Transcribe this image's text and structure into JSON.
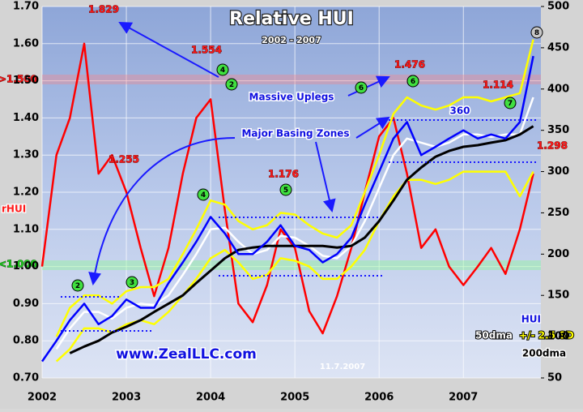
{
  "chart_data": {
    "type": "line",
    "title": "Relative HUI",
    "subtitle": "2002 - 2007",
    "x": [
      2002,
      2002.17,
      2002.33,
      2002.5,
      2002.67,
      2002.83,
      2003,
      2003.17,
      2003.33,
      2003.5,
      2003.67,
      2003.83,
      2004,
      2004.17,
      2004.33,
      2004.5,
      2004.67,
      2004.83,
      2005,
      2005.17,
      2005.33,
      2005.5,
      2005.67,
      2005.83,
      2006,
      2006.17,
      2006.33,
      2006.5,
      2006.67,
      2006.83,
      2007,
      2007.17,
      2007.33,
      2007.5,
      2007.67,
      2007.83
    ],
    "xlim": [
      2002,
      2007.92
    ],
    "xticks": [
      2002,
      2003,
      2004,
      2005,
      2006,
      2007
    ],
    "ylim": [
      0.7,
      1.7
    ],
    "yticks": [
      {
        "value": 0.7,
        "label": "0.70"
      },
      {
        "value": 0.8,
        "label": "0.80"
      },
      {
        "value": 0.9,
        "label": "0.90"
      },
      {
        "value": 1.0,
        "label": "1.00"
      },
      {
        "value": 1.1,
        "label": "1.10"
      },
      {
        "value": 1.2,
        "label": "1.20"
      },
      {
        "value": 1.3,
        "label": "1.30"
      },
      {
        "value": 1.4,
        "label": "1.40"
      },
      {
        "value": 1.5,
        "label": "1.50"
      },
      {
        "value": 1.6,
        "label": "1.60"
      },
      {
        "value": 1.7,
        "label": "1.70"
      }
    ],
    "y2lim": [
      50,
      500
    ],
    "y2ticks": [
      50,
      100,
      150,
      200,
      250,
      300,
      350,
      400,
      450,
      500
    ],
    "grid": true,
    "series": [
      {
        "name": "rHUI",
        "color": "#ff0000",
        "values": [
          1.0,
          1.3,
          1.4,
          1.6,
          1.25,
          1.3,
          1.2,
          1.05,
          0.92,
          1.05,
          1.25,
          1.4,
          1.45,
          1.15,
          0.9,
          0.85,
          0.95,
          1.1,
          1.05,
          0.88,
          0.82,
          0.92,
          1.05,
          1.2,
          1.35,
          1.4,
          1.25,
          1.05,
          1.1,
          1.0,
          0.95,
          1.0,
          1.05,
          0.98,
          1.1,
          1.25
        ]
      },
      {
        "name": "+/- 2.5 SD",
        "color": "#ffff00",
        "axis": "y2",
        "values": [
          null,
          100,
          135,
          150,
          150,
          140,
          155,
          160,
          160,
          170,
          200,
          230,
          265,
          260,
          240,
          230,
          235,
          250,
          248,
          235,
          225,
          220,
          235,
          275,
          320,
          370,
          390,
          380,
          375,
          380,
          390,
          390,
          385,
          390,
          395,
          460
        ],
        "lower": [
          null,
          70,
          85,
          110,
          110,
          105,
          115,
          120,
          115,
          130,
          150,
          170,
          195,
          205,
          190,
          170,
          175,
          195,
          192,
          185,
          170,
          170,
          185,
          205,
          240,
          270,
          290,
          290,
          285,
          290,
          300,
          300,
          300,
          300,
          270,
          300
        ]
      },
      {
        "name": "50dma",
        "color": "#ffffff",
        "axis": "y2",
        "values": [
          null,
          85,
          110,
          130,
          130,
          122,
          135,
          140,
          138,
          150,
          175,
          200,
          230,
          232,
          215,
          200,
          205,
          222,
          220,
          210,
          198,
          195,
          210,
          240,
          280,
          320,
          340,
          335,
          330,
          335,
          345,
          345,
          342,
          345,
          345,
          390
        ]
      },
      {
        "name": "200dma",
        "color": "#000000",
        "axis": "y2",
        "values": [
          null,
          null,
          80,
          88,
          95,
          105,
          112,
          120,
          130,
          140,
          150,
          165,
          180,
          195,
          205,
          208,
          210,
          210,
          210,
          210,
          210,
          208,
          210,
          220,
          240,
          265,
          290,
          305,
          318,
          325,
          330,
          332,
          335,
          338,
          345,
          355
        ]
      },
      {
        "name": "HUI",
        "color": "#0000ff",
        "axis": "y2",
        "values": [
          70,
          95,
          120,
          140,
          115,
          125,
          145,
          135,
          135,
          165,
          190,
          215,
          245,
          225,
          200,
          200,
          215,
          235,
          210,
          205,
          190,
          200,
          220,
          260,
          300,
          340,
          360,
          320,
          330,
          340,
          350,
          340,
          345,
          340,
          360,
          440
        ]
      }
    ],
    "annotations": [
      "1.829",
      "1.554",
      "1.255",
      "1.176",
      "1.476",
      "1.114",
      "1.298",
      ">1.500",
      "<1.000",
      "Massive Uplegs",
      "Major Basing Zones",
      "360",
      "www.ZealLLC.com",
      "11.7.2007"
    ],
    "circles": [
      "2",
      "3",
      "4",
      "5",
      "6",
      "4",
      "2",
      "6",
      "6",
      "7",
      "8"
    ]
  }
}
